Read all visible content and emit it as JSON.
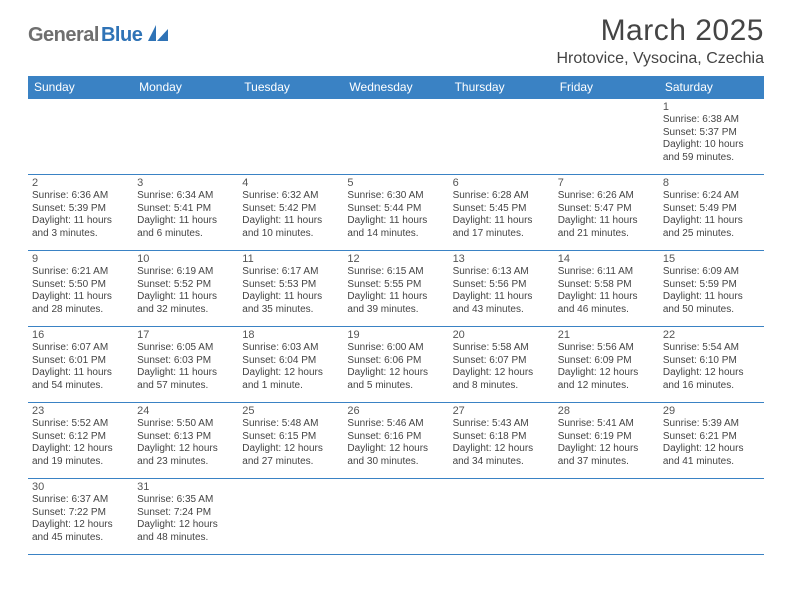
{
  "logo": {
    "gray": "General",
    "blue": "Blue"
  },
  "header": {
    "title": "March 2025",
    "location": "Hrotovice, Vysocina, Czechia"
  },
  "colors": {
    "header_bg": "#3a82c4",
    "header_fg": "#ffffff",
    "border": "#3a82c4",
    "text": "#444444",
    "logo_gray": "#6f6f6f",
    "logo_blue": "#2f73b6"
  },
  "weekdays": [
    "Sunday",
    "Monday",
    "Tuesday",
    "Wednesday",
    "Thursday",
    "Friday",
    "Saturday"
  ],
  "weeks": [
    [
      null,
      null,
      null,
      null,
      null,
      null,
      {
        "n": "1",
        "sr": "Sunrise: 6:38 AM",
        "ss": "Sunset: 5:37 PM",
        "dl1": "Daylight: 10 hours",
        "dl2": "and 59 minutes."
      }
    ],
    [
      {
        "n": "2",
        "sr": "Sunrise: 6:36 AM",
        "ss": "Sunset: 5:39 PM",
        "dl1": "Daylight: 11 hours",
        "dl2": "and 3 minutes."
      },
      {
        "n": "3",
        "sr": "Sunrise: 6:34 AM",
        "ss": "Sunset: 5:41 PM",
        "dl1": "Daylight: 11 hours",
        "dl2": "and 6 minutes."
      },
      {
        "n": "4",
        "sr": "Sunrise: 6:32 AM",
        "ss": "Sunset: 5:42 PM",
        "dl1": "Daylight: 11 hours",
        "dl2": "and 10 minutes."
      },
      {
        "n": "5",
        "sr": "Sunrise: 6:30 AM",
        "ss": "Sunset: 5:44 PM",
        "dl1": "Daylight: 11 hours",
        "dl2": "and 14 minutes."
      },
      {
        "n": "6",
        "sr": "Sunrise: 6:28 AM",
        "ss": "Sunset: 5:45 PM",
        "dl1": "Daylight: 11 hours",
        "dl2": "and 17 minutes."
      },
      {
        "n": "7",
        "sr": "Sunrise: 6:26 AM",
        "ss": "Sunset: 5:47 PM",
        "dl1": "Daylight: 11 hours",
        "dl2": "and 21 minutes."
      },
      {
        "n": "8",
        "sr": "Sunrise: 6:24 AM",
        "ss": "Sunset: 5:49 PM",
        "dl1": "Daylight: 11 hours",
        "dl2": "and 25 minutes."
      }
    ],
    [
      {
        "n": "9",
        "sr": "Sunrise: 6:21 AM",
        "ss": "Sunset: 5:50 PM",
        "dl1": "Daylight: 11 hours",
        "dl2": "and 28 minutes."
      },
      {
        "n": "10",
        "sr": "Sunrise: 6:19 AM",
        "ss": "Sunset: 5:52 PM",
        "dl1": "Daylight: 11 hours",
        "dl2": "and 32 minutes."
      },
      {
        "n": "11",
        "sr": "Sunrise: 6:17 AM",
        "ss": "Sunset: 5:53 PM",
        "dl1": "Daylight: 11 hours",
        "dl2": "and 35 minutes."
      },
      {
        "n": "12",
        "sr": "Sunrise: 6:15 AM",
        "ss": "Sunset: 5:55 PM",
        "dl1": "Daylight: 11 hours",
        "dl2": "and 39 minutes."
      },
      {
        "n": "13",
        "sr": "Sunrise: 6:13 AM",
        "ss": "Sunset: 5:56 PM",
        "dl1": "Daylight: 11 hours",
        "dl2": "and 43 minutes."
      },
      {
        "n": "14",
        "sr": "Sunrise: 6:11 AM",
        "ss": "Sunset: 5:58 PM",
        "dl1": "Daylight: 11 hours",
        "dl2": "and 46 minutes."
      },
      {
        "n": "15",
        "sr": "Sunrise: 6:09 AM",
        "ss": "Sunset: 5:59 PM",
        "dl1": "Daylight: 11 hours",
        "dl2": "and 50 minutes."
      }
    ],
    [
      {
        "n": "16",
        "sr": "Sunrise: 6:07 AM",
        "ss": "Sunset: 6:01 PM",
        "dl1": "Daylight: 11 hours",
        "dl2": "and 54 minutes."
      },
      {
        "n": "17",
        "sr": "Sunrise: 6:05 AM",
        "ss": "Sunset: 6:03 PM",
        "dl1": "Daylight: 11 hours",
        "dl2": "and 57 minutes."
      },
      {
        "n": "18",
        "sr": "Sunrise: 6:03 AM",
        "ss": "Sunset: 6:04 PM",
        "dl1": "Daylight: 12 hours",
        "dl2": "and 1 minute."
      },
      {
        "n": "19",
        "sr": "Sunrise: 6:00 AM",
        "ss": "Sunset: 6:06 PM",
        "dl1": "Daylight: 12 hours",
        "dl2": "and 5 minutes."
      },
      {
        "n": "20",
        "sr": "Sunrise: 5:58 AM",
        "ss": "Sunset: 6:07 PM",
        "dl1": "Daylight: 12 hours",
        "dl2": "and 8 minutes."
      },
      {
        "n": "21",
        "sr": "Sunrise: 5:56 AM",
        "ss": "Sunset: 6:09 PM",
        "dl1": "Daylight: 12 hours",
        "dl2": "and 12 minutes."
      },
      {
        "n": "22",
        "sr": "Sunrise: 5:54 AM",
        "ss": "Sunset: 6:10 PM",
        "dl1": "Daylight: 12 hours",
        "dl2": "and 16 minutes."
      }
    ],
    [
      {
        "n": "23",
        "sr": "Sunrise: 5:52 AM",
        "ss": "Sunset: 6:12 PM",
        "dl1": "Daylight: 12 hours",
        "dl2": "and 19 minutes."
      },
      {
        "n": "24",
        "sr": "Sunrise: 5:50 AM",
        "ss": "Sunset: 6:13 PM",
        "dl1": "Daylight: 12 hours",
        "dl2": "and 23 minutes."
      },
      {
        "n": "25",
        "sr": "Sunrise: 5:48 AM",
        "ss": "Sunset: 6:15 PM",
        "dl1": "Daylight: 12 hours",
        "dl2": "and 27 minutes."
      },
      {
        "n": "26",
        "sr": "Sunrise: 5:46 AM",
        "ss": "Sunset: 6:16 PM",
        "dl1": "Daylight: 12 hours",
        "dl2": "and 30 minutes."
      },
      {
        "n": "27",
        "sr": "Sunrise: 5:43 AM",
        "ss": "Sunset: 6:18 PM",
        "dl1": "Daylight: 12 hours",
        "dl2": "and 34 minutes."
      },
      {
        "n": "28",
        "sr": "Sunrise: 5:41 AM",
        "ss": "Sunset: 6:19 PM",
        "dl1": "Daylight: 12 hours",
        "dl2": "and 37 minutes."
      },
      {
        "n": "29",
        "sr": "Sunrise: 5:39 AM",
        "ss": "Sunset: 6:21 PM",
        "dl1": "Daylight: 12 hours",
        "dl2": "and 41 minutes."
      }
    ],
    [
      {
        "n": "30",
        "sr": "Sunrise: 6:37 AM",
        "ss": "Sunset: 7:22 PM",
        "dl1": "Daylight: 12 hours",
        "dl2": "and 45 minutes."
      },
      {
        "n": "31",
        "sr": "Sunrise: 6:35 AM",
        "ss": "Sunset: 7:24 PM",
        "dl1": "Daylight: 12 hours",
        "dl2": "and 48 minutes."
      },
      null,
      null,
      null,
      null,
      null
    ]
  ]
}
